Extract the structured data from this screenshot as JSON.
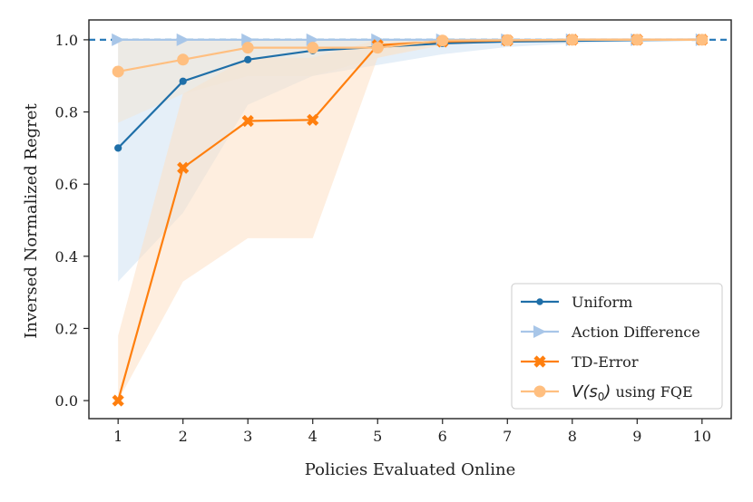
{
  "chart_data": {
    "type": "line",
    "xlabel": "Policies Evaluated Online",
    "ylabel": "Inversed Normalized Regret",
    "xlim": [
      0.55,
      10.45
    ],
    "ylim": [
      -0.05,
      1.055
    ],
    "x": [
      1,
      2,
      3,
      4,
      5,
      6,
      7,
      8,
      9,
      10
    ],
    "xticks": [
      "1",
      "2",
      "3",
      "4",
      "5",
      "6",
      "7",
      "8",
      "9",
      "10"
    ],
    "yticks": [
      "0.0",
      "0.2",
      "0.4",
      "0.6",
      "0.8",
      "1.0"
    ],
    "reference_line": {
      "y": 1.0,
      "style": "dashed",
      "color": "#2b7bb9"
    },
    "legend_position": "lower-right",
    "grid": false,
    "series": [
      {
        "name": "Uniform",
        "color": "#1f6fa8",
        "marker": "circle",
        "values": [
          0.7,
          0.885,
          0.945,
          0.97,
          0.98,
          0.99,
          0.995,
          0.997,
          0.999,
          1.0
        ],
        "band_lower": [
          0.33,
          0.52,
          0.82,
          0.9,
          0.93,
          0.96,
          0.98,
          0.99,
          0.995,
          1.0
        ],
        "band_upper": [
          1.0,
          1.0,
          1.0,
          1.0,
          1.0,
          1.0,
          1.0,
          1.0,
          1.0,
          1.0
        ],
        "band_color": "#cfe2f3"
      },
      {
        "name": "Action Difference",
        "color": "#a8c6e8",
        "marker": "triangle-right",
        "values": [
          1.0,
          1.0,
          1.0,
          1.0,
          1.0,
          1.0,
          1.0,
          1.0,
          1.0,
          1.0
        ]
      },
      {
        "name": "TD-Error",
        "color": "#ff7f0e",
        "marker": "x",
        "values": [
          0.0,
          0.645,
          0.775,
          0.778,
          0.985,
          0.995,
          0.998,
          1.0,
          1.0,
          1.0
        ],
        "band_lower": [
          0.0,
          0.33,
          0.45,
          0.45,
          0.95,
          0.985,
          0.995,
          1.0,
          1.0,
          1.0
        ],
        "band_upper": [
          0.18,
          0.85,
          0.95,
          0.95,
          1.0,
          1.0,
          1.0,
          1.0,
          1.0,
          1.0
        ],
        "band_color": "#fde0c5"
      },
      {
        "name": "V(s0) using FQE",
        "color": "#ffbf80",
        "marker": "circle",
        "values": [
          0.912,
          0.945,
          0.978,
          0.978,
          0.978,
          0.998,
          0.999,
          1.0,
          1.0,
          1.0
        ],
        "band_lower": [
          0.77,
          0.85,
          0.9,
          0.9,
          0.95,
          0.99,
          0.995,
          1.0,
          1.0,
          1.0
        ],
        "band_upper": [
          1.0,
          1.0,
          1.0,
          1.0,
          1.0,
          1.0,
          1.0,
          1.0,
          1.0,
          1.0
        ],
        "band_color": "#f3e6d5"
      }
    ]
  }
}
